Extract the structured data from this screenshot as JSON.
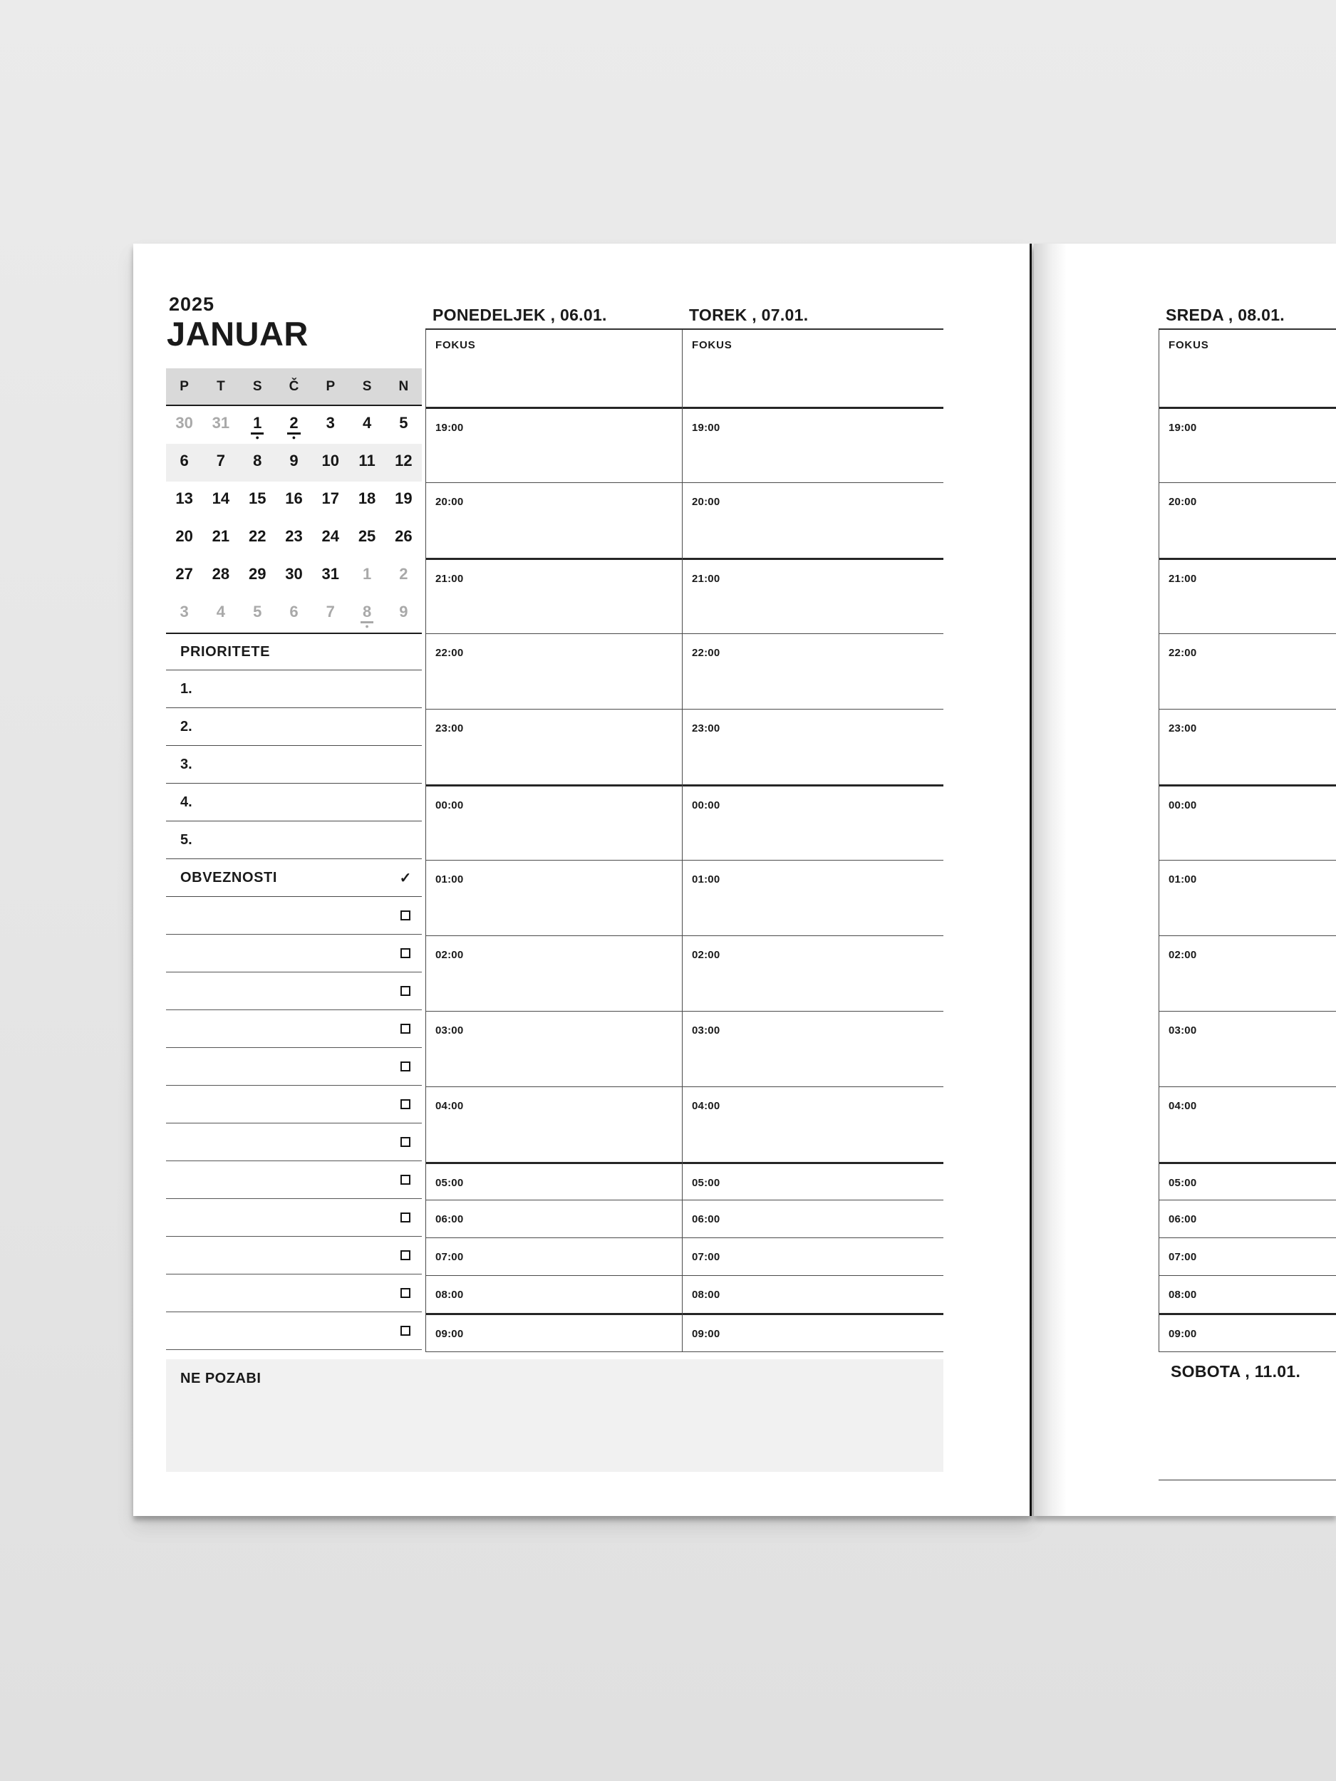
{
  "colors": {
    "desk_bg": "#e5e5e5",
    "page_bg": "#ffffff",
    "ink": "#1a1a1a",
    "muted_text": "#a9a9a9",
    "grid_line": "#4a4a4a",
    "grid_line_strong": "#262626",
    "calendar_header_bg": "#d9d9d9",
    "current_week_bg": "#efefef",
    "notes_box_bg": "#f1f1f1"
  },
  "left_page": {
    "year": "2025",
    "month_title": "JANUAR",
    "mini_calendar": {
      "day_headers": [
        "P",
        "T",
        "S",
        "Č",
        "P",
        "S",
        "N"
      ],
      "weeks": [
        {
          "highlight": false,
          "days": [
            {
              "label": "30",
              "muted": true
            },
            {
              "label": "31",
              "muted": true
            },
            {
              "label": "1",
              "marked": true
            },
            {
              "label": "2",
              "marked": true
            },
            {
              "label": "3"
            },
            {
              "label": "4"
            },
            {
              "label": "5"
            }
          ]
        },
        {
          "highlight": true,
          "days": [
            {
              "label": "6"
            },
            {
              "label": "7"
            },
            {
              "label": "8"
            },
            {
              "label": "9"
            },
            {
              "label": "10"
            },
            {
              "label": "11"
            },
            {
              "label": "12"
            }
          ]
        },
        {
          "highlight": false,
          "days": [
            {
              "label": "13"
            },
            {
              "label": "14"
            },
            {
              "label": "15"
            },
            {
              "label": "16"
            },
            {
              "label": "17"
            },
            {
              "label": "18"
            },
            {
              "label": "19"
            }
          ]
        },
        {
          "highlight": false,
          "days": [
            {
              "label": "20"
            },
            {
              "label": "21"
            },
            {
              "label": "22"
            },
            {
              "label": "23"
            },
            {
              "label": "24"
            },
            {
              "label": "25"
            },
            {
              "label": "26"
            }
          ]
        },
        {
          "highlight": false,
          "days": [
            {
              "label": "27"
            },
            {
              "label": "28"
            },
            {
              "label": "29"
            },
            {
              "label": "30"
            },
            {
              "label": "31"
            },
            {
              "label": "1",
              "muted": true
            },
            {
              "label": "2",
              "muted": true
            }
          ]
        },
        {
          "highlight": false,
          "days": [
            {
              "label": "3",
              "muted": true
            },
            {
              "label": "4",
              "muted": true
            },
            {
              "label": "5",
              "muted": true
            },
            {
              "label": "6",
              "muted": true
            },
            {
              "label": "7",
              "muted": true
            },
            {
              "label": "8",
              "muted": true,
              "marked": true
            },
            {
              "label": "9",
              "muted": true
            }
          ]
        }
      ]
    },
    "priorities": {
      "title": "PRIORITETE",
      "items": [
        "1.",
        "2.",
        "3.",
        "4.",
        "5."
      ]
    },
    "obligations": {
      "title": "OBVEZNOSTI",
      "check_icon": "✓",
      "row_count": 12
    },
    "notes": {
      "title": "NE POZABI"
    },
    "day_columns": [
      {
        "day_name": "PONEDELJEK",
        "date": "06.01."
      },
      {
        "day_name": "TOREK",
        "date": "07.01."
      }
    ]
  },
  "right_page": {
    "day_column": {
      "day_name": "SREDA",
      "date": "08.01."
    },
    "weekend_section": {
      "day_name": "SOBOTA",
      "date": "11.01."
    }
  },
  "schedule": {
    "focus_label": "FOKUS",
    "time_slots": [
      {
        "time": "19:00",
        "size": "major",
        "strong_top": true
      },
      {
        "time": "20:00",
        "size": "major"
      },
      {
        "time": "21:00",
        "size": "major",
        "strong_top": true
      },
      {
        "time": "22:00",
        "size": "major"
      },
      {
        "time": "23:00",
        "size": "major"
      },
      {
        "time": "00:00",
        "size": "major",
        "strong_top": true
      },
      {
        "time": "01:00",
        "size": "major"
      },
      {
        "time": "02:00",
        "size": "major"
      },
      {
        "time": "03:00",
        "size": "major"
      },
      {
        "time": "04:00",
        "size": "major"
      },
      {
        "time": "05:00",
        "size": "minor",
        "strong_top": true
      },
      {
        "time": "06:00",
        "size": "minor"
      },
      {
        "time": "07:00",
        "size": "minor"
      },
      {
        "time": "08:00",
        "size": "minor"
      },
      {
        "time": "09:00",
        "size": "minor",
        "strong_top": true
      }
    ]
  }
}
